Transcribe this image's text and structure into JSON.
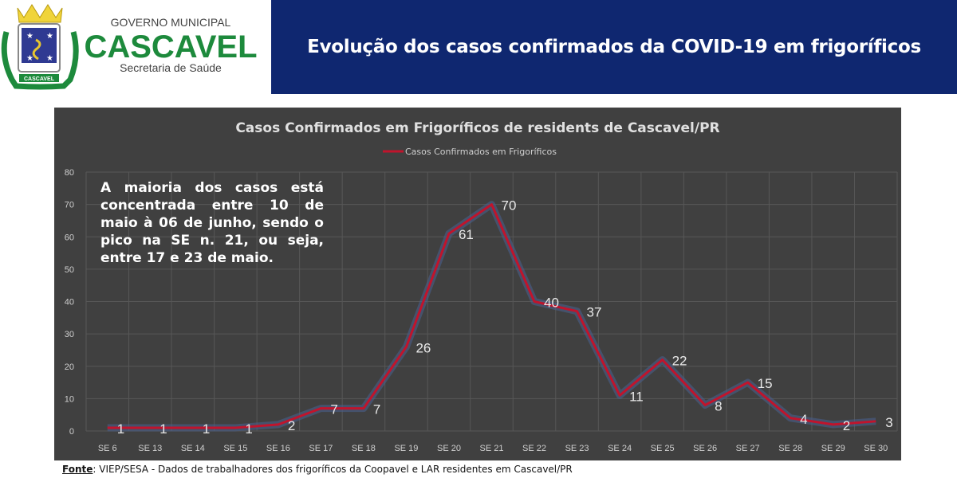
{
  "logo": {
    "line1": "GOVERNO MUNICIPAL",
    "line2": "CASCAVEL",
    "line3": "Secretaria de Saúde",
    "ribbon": "CASCAVEL"
  },
  "header": {
    "title": "Evolução dos casos confirmados da COVID-19 em frigoríficos"
  },
  "note": "A maioria dos casos está concentrada entre 10 de maio à 06 de junho, sendo o pico na SE n. 21, ou seja, entre 17 e 23 de maio.",
  "source": {
    "label": "Fonte",
    "text": ": VIEP/SESA - Dados de trabalhadores dos frigoríficos da Coopavel e LAR residentes em Cascavel/PR"
  },
  "chart_data": {
    "type": "line",
    "title": "Casos Confirmados em Frigoríficos de residents de Cascavel/PR",
    "categories": [
      "SE 6",
      "SE 13",
      "SE 14",
      "SE 15",
      "SE 16",
      "SE 17",
      "SE 18",
      "SE 19",
      "SE 20",
      "SE 21",
      "SE 22",
      "SE 23",
      "SE 24",
      "SE 25",
      "SE 26",
      "SE 27",
      "SE 28",
      "SE 29",
      "SE 30"
    ],
    "series": [
      {
        "name": "Casos Confirmados em Frigoríficos",
        "values": [
          1,
          1,
          1,
          1,
          2,
          7,
          7,
          26,
          61,
          70,
          40,
          37,
          11,
          22,
          8,
          15,
          4,
          2,
          3
        ],
        "color": "#c0142c"
      }
    ],
    "ylim": [
      0,
      80
    ],
    "yticks": [
      0,
      10,
      20,
      30,
      40,
      50,
      60,
      70,
      80
    ],
    "grid": true,
    "legend": "top-center",
    "data_labels": true,
    "background": "#404040"
  }
}
